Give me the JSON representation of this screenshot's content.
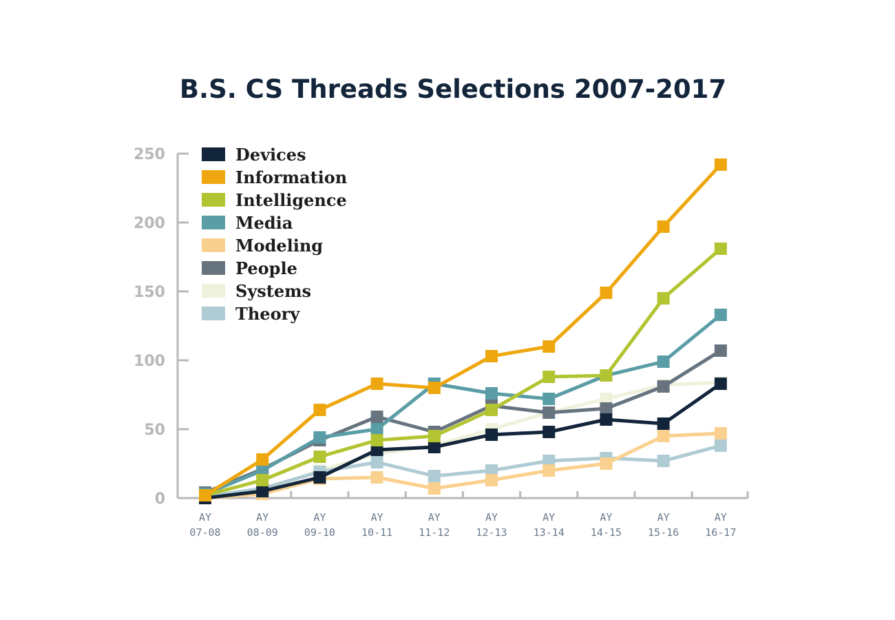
{
  "chart_data": {
    "type": "line",
    "title": "B.S. CS Threads Selections 2007-2017",
    "xlabel": "",
    "ylabel": "",
    "ylim": [
      0,
      250
    ],
    "yticks": [
      "0",
      "50",
      "100",
      "150",
      "200",
      "250"
    ],
    "ytick_values": [
      0,
      50,
      100,
      150,
      200,
      250
    ],
    "categories": [
      [
        "AY",
        "07-08"
      ],
      [
        "AY",
        "08-09"
      ],
      [
        "AY",
        "09-10"
      ],
      [
        "AY",
        "10-11"
      ],
      [
        "AY",
        "11-12"
      ],
      [
        "AY",
        "12-13"
      ],
      [
        "AY",
        "13-14"
      ],
      [
        "AY",
        "14-15"
      ],
      [
        "AY",
        "15-16"
      ],
      [
        "AY",
        "16-17"
      ]
    ],
    "legend_position": "top-left",
    "series": [
      {
        "name": "Devices",
        "color": "#13253b",
        "values": [
          0,
          5,
          15,
          35,
          37,
          46,
          48,
          57,
          54,
          83
        ]
      },
      {
        "name": "Information",
        "color": "#eea70e",
        "values": [
          2,
          28,
          64,
          83,
          80,
          103,
          110,
          149,
          197,
          242
        ]
      },
      {
        "name": "Intelligence",
        "color": "#b3c432",
        "values": [
          2,
          13,
          30,
          42,
          45,
          64,
          88,
          89,
          145,
          181
        ]
      },
      {
        "name": "Media",
        "color": "#5a9da6",
        "values": [
          3,
          20,
          44,
          50,
          83,
          76,
          72,
          89,
          99,
          133
        ]
      },
      {
        "name": "Modeling",
        "color": "#f9d08e",
        "values": [
          0,
          3,
          14,
          15,
          7,
          13,
          20,
          25,
          45,
          47
        ]
      },
      {
        "name": "People",
        "color": "#67747f",
        "values": [
          4,
          21,
          42,
          59,
          48,
          67,
          62,
          65,
          81,
          107
        ]
      },
      {
        "name": "Systems",
        "color": "#eef2dc",
        "values": [
          1,
          6,
          20,
          32,
          38,
          50,
          62,
          72,
          82,
          84
        ]
      },
      {
        "name": "Theory",
        "color": "#afcbd3",
        "values": [
          1,
          7,
          19,
          26,
          16,
          20,
          27,
          29,
          27,
          38
        ]
      }
    ],
    "draw_order": [
      "Systems",
      "Theory",
      "Modeling",
      "People",
      "Media",
      "Devices",
      "Intelligence",
      "Information"
    ]
  }
}
